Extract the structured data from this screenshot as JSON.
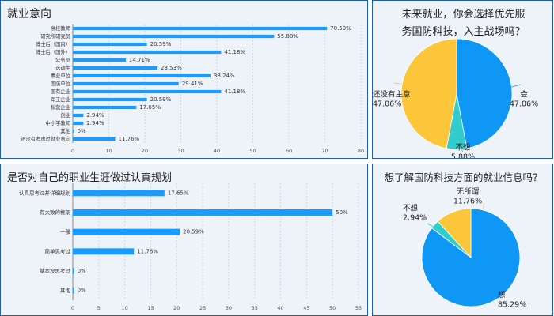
{
  "colors": {
    "bar": "#1a9cff",
    "blue": "#0f97f5",
    "yellow": "#fcc63a",
    "teal": "#33cccc"
  },
  "chart_data": [
    {
      "id": "employment",
      "type": "bar",
      "orientation": "horizontal",
      "title": "就业意向",
      "categories": [
        "高校教师",
        "研究所研究员",
        "博士后（国内）",
        "博士后（国外）",
        "公务员",
        "选调生",
        "事业单位",
        "国防单位",
        "国有企业",
        "军工企业",
        "私营企业",
        "创业",
        "中小学教师",
        "其他",
        "还没有考虑过就业意向"
      ],
      "values": [
        70.59,
        55.88,
        20.59,
        41.18,
        14.71,
        23.53,
        38.24,
        29.41,
        41.18,
        20.59,
        17.65,
        2.94,
        2.94,
        0,
        11.76
      ],
      "value_labels": [
        "70.59%",
        "55.88%",
        "20.59%",
        "41.18%",
        "14.71%",
        "23.53%",
        "38.24%",
        "29.41%",
        "41.18%",
        "20.59%",
        "17.65%",
        "2.94%",
        "2.94%",
        "0%",
        "11.76%"
      ],
      "xlim": [
        0,
        80
      ],
      "xticks": [
        "0",
        "10",
        "20",
        "30",
        "40",
        "50",
        "60",
        "70",
        "80"
      ],
      "grid": true
    },
    {
      "id": "career",
      "type": "bar",
      "orientation": "horizontal",
      "title": "是否对自己的职业生涯做过认真规划",
      "categories": [
        "认真思考过并详细规划",
        "有大致的框架",
        "一般",
        "简单思考过",
        "基本没思考过",
        "其他"
      ],
      "values": [
        17.65,
        50,
        20.59,
        11.76,
        0,
        0
      ],
      "value_labels": [
        "17.65%",
        "50%",
        "20.59%",
        "11.76%",
        "0%",
        "0%"
      ],
      "xlim": [
        0,
        55
      ],
      "xticks": [
        "0",
        "5",
        "10",
        "15",
        "20",
        "25",
        "30",
        "35",
        "40",
        "45",
        "50",
        "55"
      ],
      "grid": true
    },
    {
      "id": "defense",
      "type": "pie",
      "title_lines": [
        "未来就业，你会选择优先服",
        "务国防科技，入主战场吗？"
      ],
      "slices": [
        {
          "name": "会",
          "value": 47.06,
          "pct": "47.06%"
        },
        {
          "name": "不想",
          "value": 5.88,
          "pct": "5.88%"
        },
        {
          "name": "还没有主意",
          "value": 47.06,
          "pct": "47.06%"
        }
      ]
    },
    {
      "id": "info",
      "type": "pie",
      "title": "想了解国防科技方面的就业信息吗？",
      "slices": [
        {
          "name": "想",
          "value": 85.29,
          "pct": "85.29%"
        },
        {
          "name": "不想",
          "value": 2.94,
          "pct": "2.94%"
        },
        {
          "name": "无所谓",
          "value": 11.76,
          "pct": "11.76%"
        }
      ]
    }
  ]
}
